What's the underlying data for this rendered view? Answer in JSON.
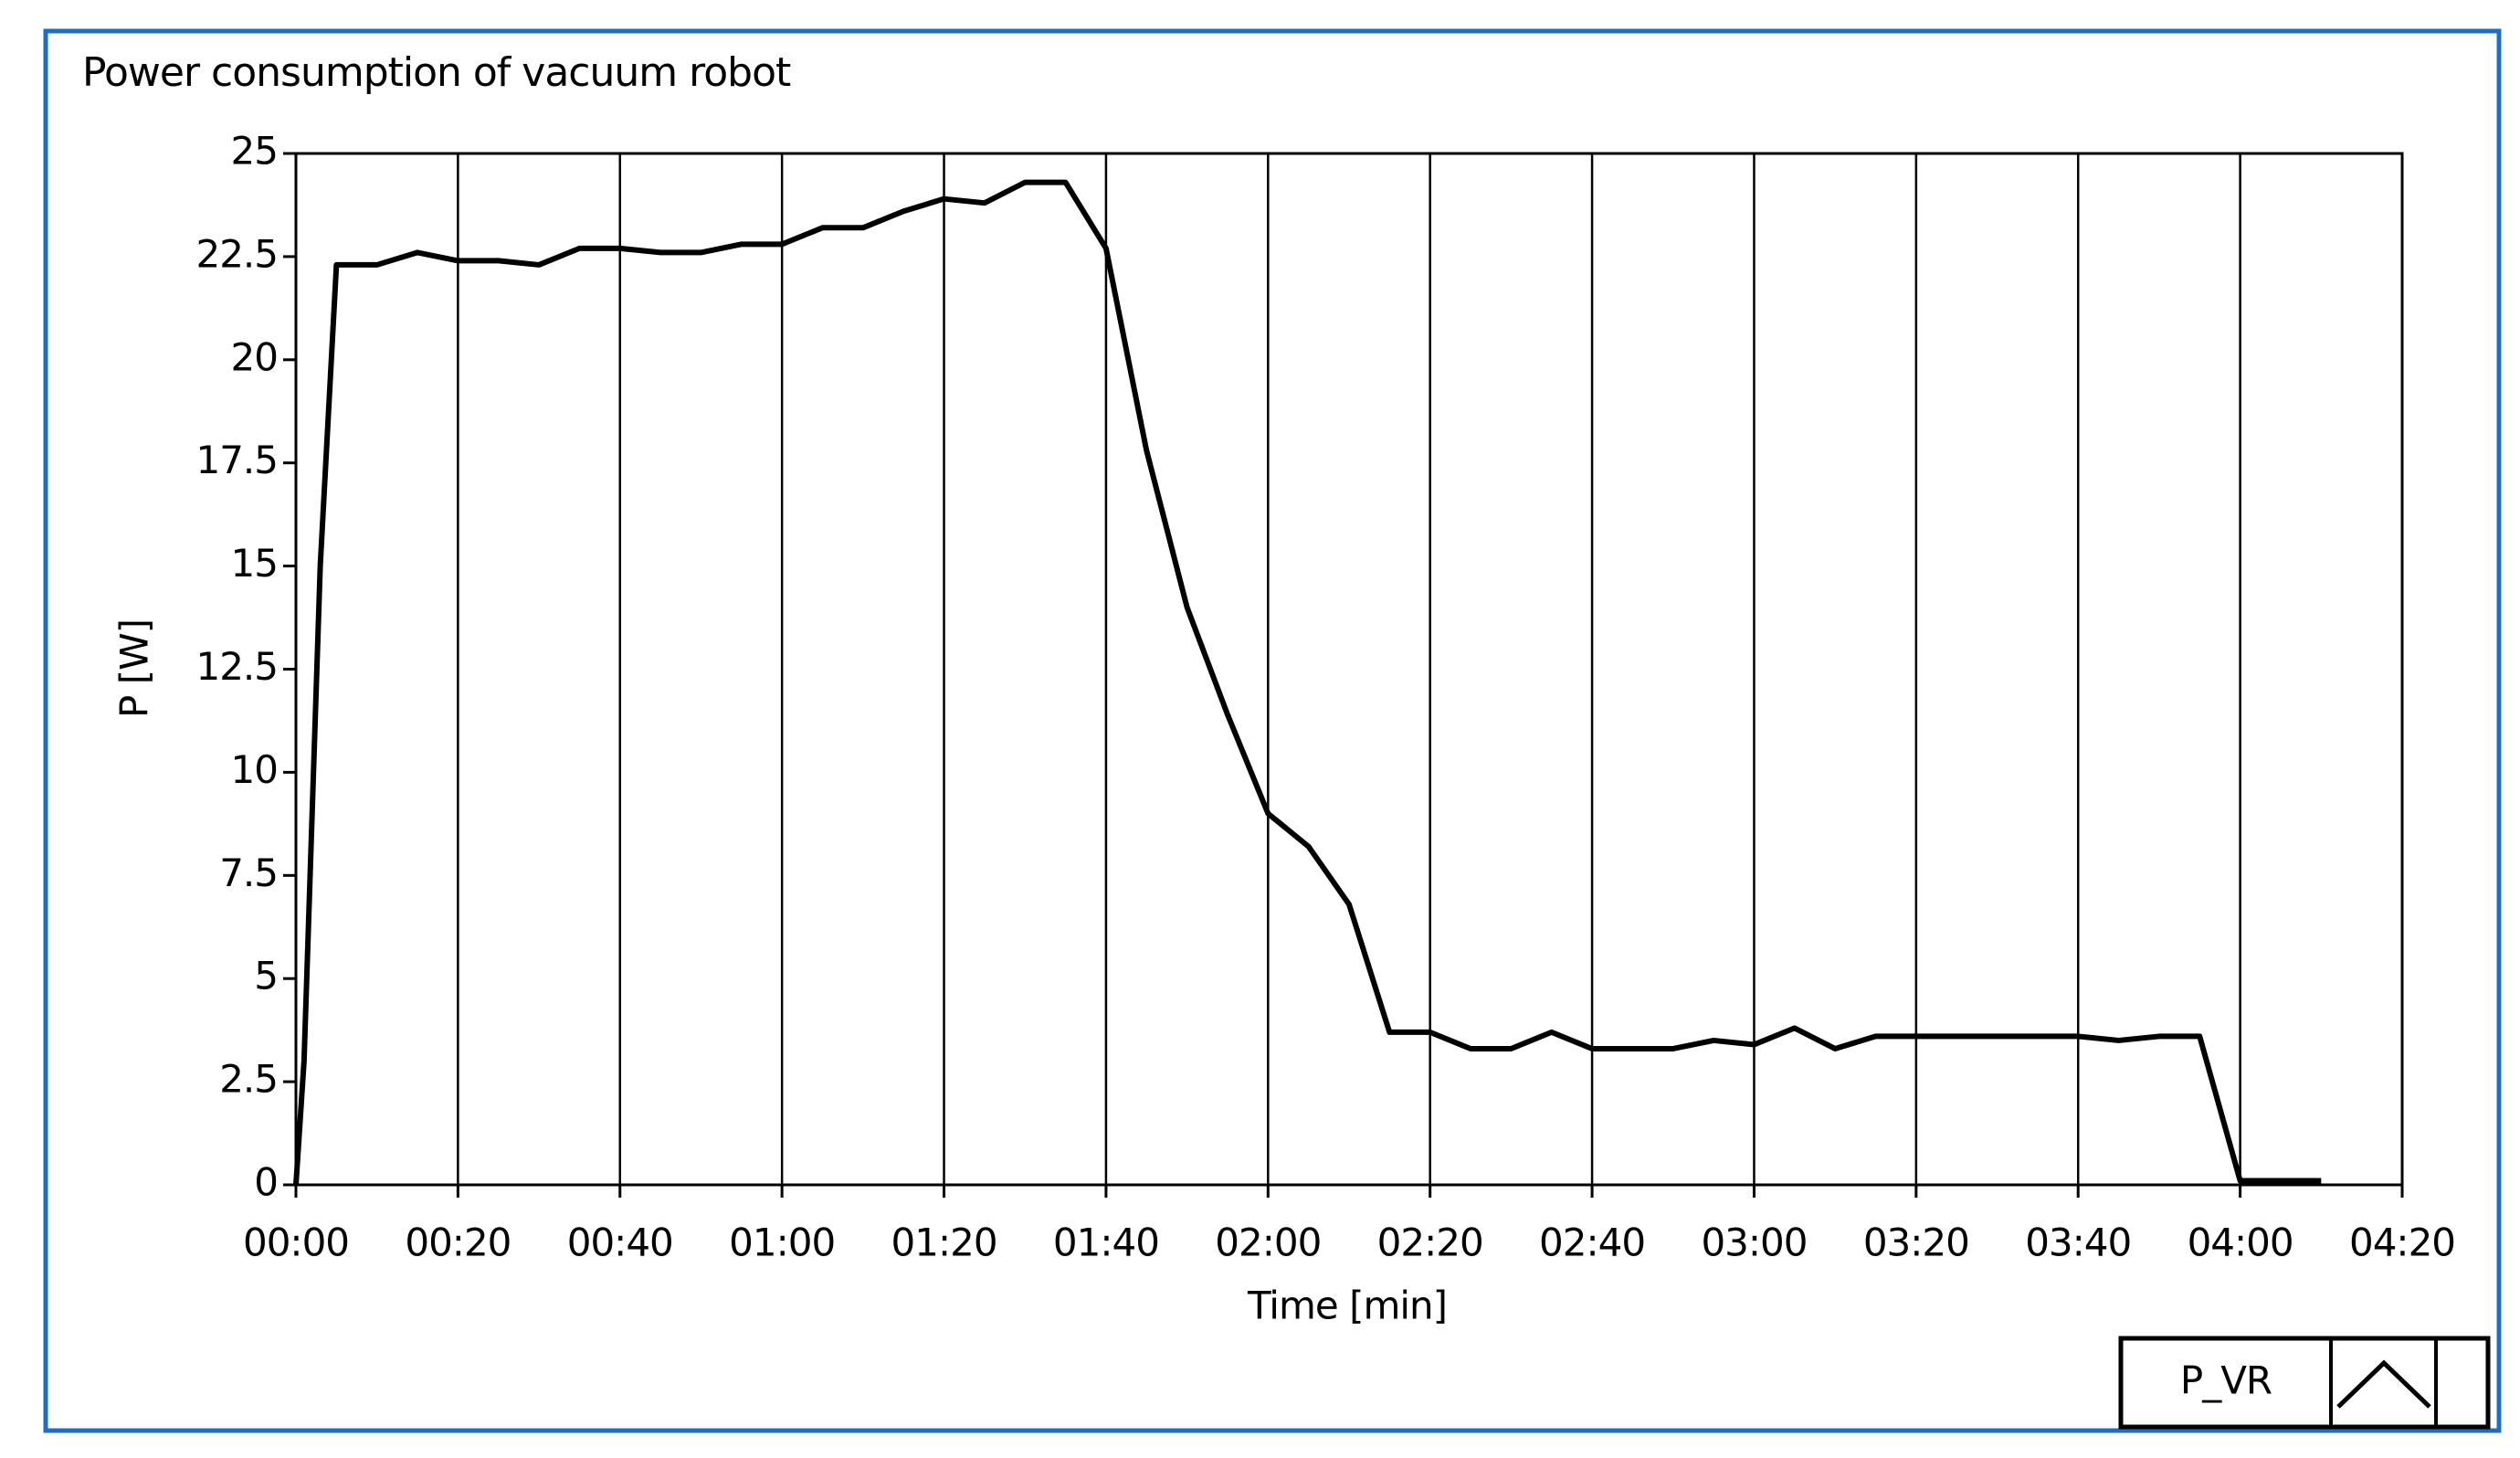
{
  "chart_data": {
    "type": "line",
    "title": "Power consumption of vacuum robot",
    "x_label": "Time [min]",
    "y_label": "P [W]",
    "x": [
      0,
      1,
      3,
      5,
      10,
      15,
      20,
      25,
      30,
      35,
      40,
      45,
      50,
      55,
      60,
      65,
      70,
      75,
      80,
      85,
      90,
      95,
      100,
      105,
      110,
      115,
      120,
      125,
      130,
      135,
      140,
      145,
      150,
      155,
      160,
      165,
      170,
      175,
      180,
      185,
      190,
      195,
      200,
      205,
      210,
      215,
      220,
      225,
      230,
      235,
      240,
      245,
      250
    ],
    "series": [
      {
        "name": "P_VR",
        "color": "#000000",
        "values": [
          0,
          3,
          15,
          22.3,
          22.3,
          22.6,
          22.4,
          22.4,
          22.3,
          22.7,
          22.7,
          22.6,
          22.6,
          22.8,
          22.8,
          23.2,
          23.2,
          23.6,
          23.9,
          23.8,
          24.3,
          24.3,
          22.7,
          17.8,
          14,
          11.4,
          9,
          8.2,
          6.8,
          3.7,
          3.7,
          3.3,
          3.3,
          3.7,
          3.3,
          3.3,
          3.3,
          3.5,
          3.4,
          3.8,
          3.3,
          3.6,
          3.6,
          3.6,
          3.6,
          3.6,
          3.6,
          3.5,
          3.6,
          3.6,
          0.1,
          0.1,
          0.1
        ]
      }
    ],
    "xlim": [
      0,
      260
    ],
    "xticks": [
      {
        "value": 0,
        "label": "00:00"
      },
      {
        "value": 20,
        "label": "00:20"
      },
      {
        "value": 40,
        "label": "00:40"
      },
      {
        "value": 60,
        "label": "01:00"
      },
      {
        "value": 80,
        "label": "01:20"
      },
      {
        "value": 100,
        "label": "01:40"
      },
      {
        "value": 120,
        "label": "02:00"
      },
      {
        "value": 140,
        "label": "02:20"
      },
      {
        "value": 160,
        "label": "02:40"
      },
      {
        "value": 180,
        "label": "03:00"
      },
      {
        "value": 200,
        "label": "03:20"
      },
      {
        "value": 220,
        "label": "03:40"
      },
      {
        "value": 240,
        "label": "04:00"
      },
      {
        "value": 260,
        "label": "04:20"
      }
    ],
    "ylim": [
      0,
      25
    ],
    "yticks": [
      0,
      2.5,
      5,
      7.5,
      10,
      12.5,
      15,
      17.5,
      20,
      22.5,
      25
    ],
    "x_grid": true
  }
}
